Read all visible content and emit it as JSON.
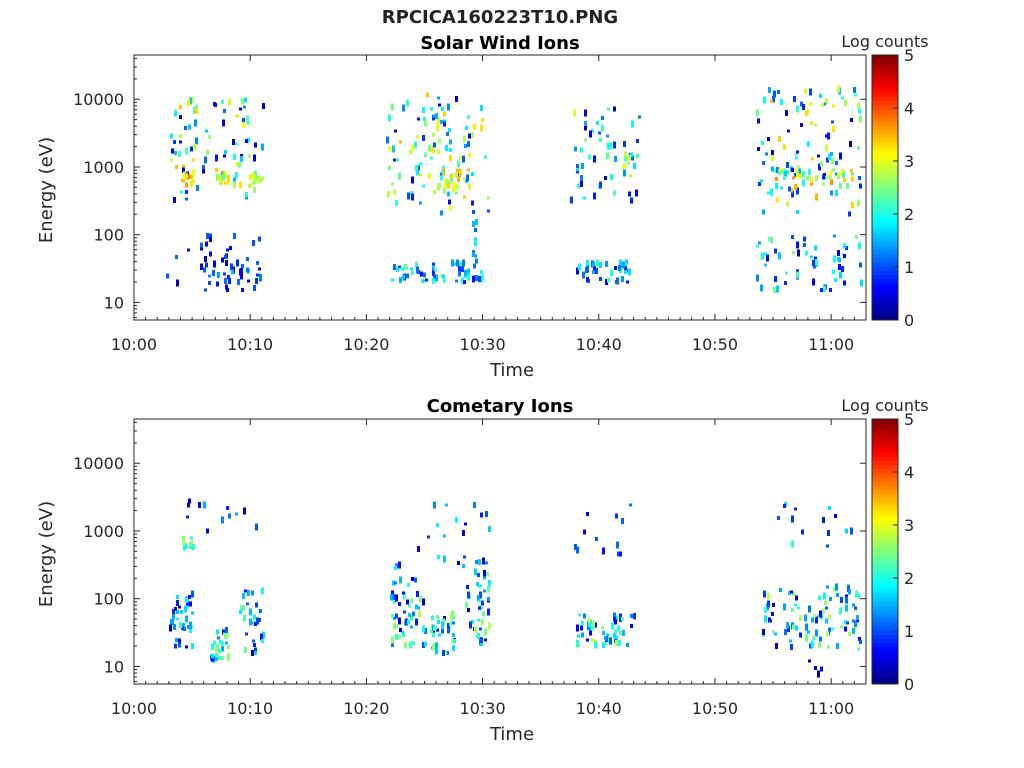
{
  "figure": {
    "filename": "RPCICA160223T10.PNG"
  },
  "chart_data": [
    {
      "type": "heatmap",
      "title": "Solar Wind Ions",
      "xlabel": "Time",
      "ylabel": "Energy (eV)",
      "x_ticks": [
        "10:00",
        "10:10",
        "10:20",
        "10:30",
        "10:40",
        "10:50",
        "11:00"
      ],
      "y_ticks": [
        "10",
        "100",
        "1000",
        "10000"
      ],
      "y_scale": "log",
      "xlim_minutes": [
        0,
        63
      ],
      "ylim": [
        5.5,
        45000
      ],
      "colorbar": {
        "label": "Log counts",
        "ticks": [
          "0",
          "1",
          "2",
          "3",
          "4",
          "5"
        ],
        "range": [
          0,
          5
        ],
        "colormap": "jet"
      },
      "clusters": [
        {
          "t": [
            3,
            11
          ],
          "e": [
            300,
            10000
          ],
          "v": [
            0.3,
            3.5
          ],
          "n": 90
        },
        {
          "t": [
            4,
            5
          ],
          "e": [
            550,
            800
          ],
          "v": [
            2.5,
            3.8
          ],
          "n": 18
        },
        {
          "t": [
            7,
            8
          ],
          "e": [
            550,
            800
          ],
          "v": [
            2.2,
            3.5
          ],
          "n": 14
        },
        {
          "t": [
            10,
            11
          ],
          "e": [
            550,
            800
          ],
          "v": [
            2,
            3.2
          ],
          "n": 12
        },
        {
          "t": [
            2.5,
            11
          ],
          "e": [
            15,
            100
          ],
          "v": [
            0.3,
            1.2
          ],
          "n": 40
        },
        {
          "t": [
            6,
            11
          ],
          "e": [
            20,
            35
          ],
          "v": [
            0.4,
            2
          ],
          "n": 20
        },
        {
          "t": [
            21.5,
            30.5
          ],
          "e": [
            200,
            12000
          ],
          "v": [
            0.3,
            3.5
          ],
          "n": 110
        },
        {
          "t": [
            26,
            28
          ],
          "e": [
            500,
            900
          ],
          "v": [
            2,
            3.6
          ],
          "n": 24
        },
        {
          "t": [
            22,
            30
          ],
          "e": [
            20,
            40
          ],
          "v": [
            0.5,
            2.5
          ],
          "n": 55
        },
        {
          "t": [
            29,
            29.5
          ],
          "e": [
            30,
            180
          ],
          "v": [
            1,
            2
          ],
          "n": 10
        },
        {
          "t": [
            37.5,
            43.5
          ],
          "e": [
            300,
            8000
          ],
          "v": [
            0.3,
            3
          ],
          "n": 55
        },
        {
          "t": [
            42,
            42.5
          ],
          "e": [
            1000,
            1600
          ],
          "v": [
            2,
            3.4
          ],
          "n": 8
        },
        {
          "t": [
            38,
            43
          ],
          "e": [
            20,
            40
          ],
          "v": [
            0.5,
            2.2
          ],
          "n": 40
        },
        {
          "t": [
            53.5,
            62.5
          ],
          "e": [
            200,
            14000
          ],
          "v": [
            0.3,
            3.5
          ],
          "n": 110
        },
        {
          "t": [
            55,
            62
          ],
          "e": [
            500,
            900
          ],
          "v": [
            2,
            3.8
          ],
          "n": 30
        },
        {
          "t": [
            53.5,
            62.5
          ],
          "e": [
            15,
            100
          ],
          "v": [
            0.3,
            2.5
          ],
          "n": 60
        }
      ]
    },
    {
      "type": "heatmap",
      "title": "Cometary Ions",
      "xlabel": "Time",
      "ylabel": "Energy (eV)",
      "x_ticks": [
        "10:00",
        "10:10",
        "10:20",
        "10:30",
        "10:40",
        "10:50",
        "11:00"
      ],
      "y_ticks": [
        "10",
        "100",
        "1000",
        "10000"
      ],
      "y_scale": "log",
      "xlim_minutes": [
        0,
        63
      ],
      "ylim": [
        5.5,
        45000
      ],
      "colorbar": {
        "label": "Log counts",
        "ticks": [
          "0",
          "1",
          "2",
          "3",
          "4",
          "5"
        ],
        "range": [
          0,
          5
        ],
        "colormap": "jet"
      },
      "clusters": [
        {
          "t": [
            4,
            5
          ],
          "e": [
            550,
            800
          ],
          "v": [
            1.8,
            2.8
          ],
          "n": 10
        },
        {
          "t": [
            3,
            11
          ],
          "e": [
            1000,
            3000
          ],
          "v": [
            0.3,
            1.5
          ],
          "n": 12
        },
        {
          "t": [
            3,
            5
          ],
          "e": [
            18,
            120
          ],
          "v": [
            0.3,
            2.2
          ],
          "n": 40
        },
        {
          "t": [
            6.5,
            8
          ],
          "e": [
            12,
            40
          ],
          "v": [
            0.5,
            2.8
          ],
          "n": 30
        },
        {
          "t": [
            9,
            11
          ],
          "e": [
            15,
            150
          ],
          "v": [
            0.4,
            2.5
          ],
          "n": 30
        },
        {
          "t": [
            21.5,
            30.5
          ],
          "e": [
            250,
            2500
          ],
          "v": [
            0.3,
            2
          ],
          "n": 25
        },
        {
          "t": [
            22,
            25
          ],
          "e": [
            20,
            200
          ],
          "v": [
            0.4,
            2.8
          ],
          "n": 55
        },
        {
          "t": [
            25.5,
            27.5
          ],
          "e": [
            15,
            60
          ],
          "v": [
            0.5,
            2.8
          ],
          "n": 40
        },
        {
          "t": [
            28.5,
            30.5
          ],
          "e": [
            20,
            250
          ],
          "v": [
            0.4,
            2.8
          ],
          "n": 45
        },
        {
          "t": [
            38,
            43
          ],
          "e": [
            20,
            60
          ],
          "v": [
            0.4,
            2.8
          ],
          "n": 55
        },
        {
          "t": [
            37.5,
            43
          ],
          "e": [
            400,
            2800
          ],
          "v": [
            0.3,
            1.2
          ],
          "n": 12
        },
        {
          "t": [
            54,
            62.5
          ],
          "e": [
            18,
            150
          ],
          "v": [
            0.3,
            2.8
          ],
          "n": 100
        },
        {
          "t": [
            55,
            62
          ],
          "e": [
            550,
            2800
          ],
          "v": [
            0.4,
            2.2
          ],
          "n": 14
        },
        {
          "t": [
            57.5,
            59
          ],
          "e": [
            6,
            12
          ],
          "v": [
            0.2,
            0.6
          ],
          "n": 4
        }
      ]
    }
  ]
}
